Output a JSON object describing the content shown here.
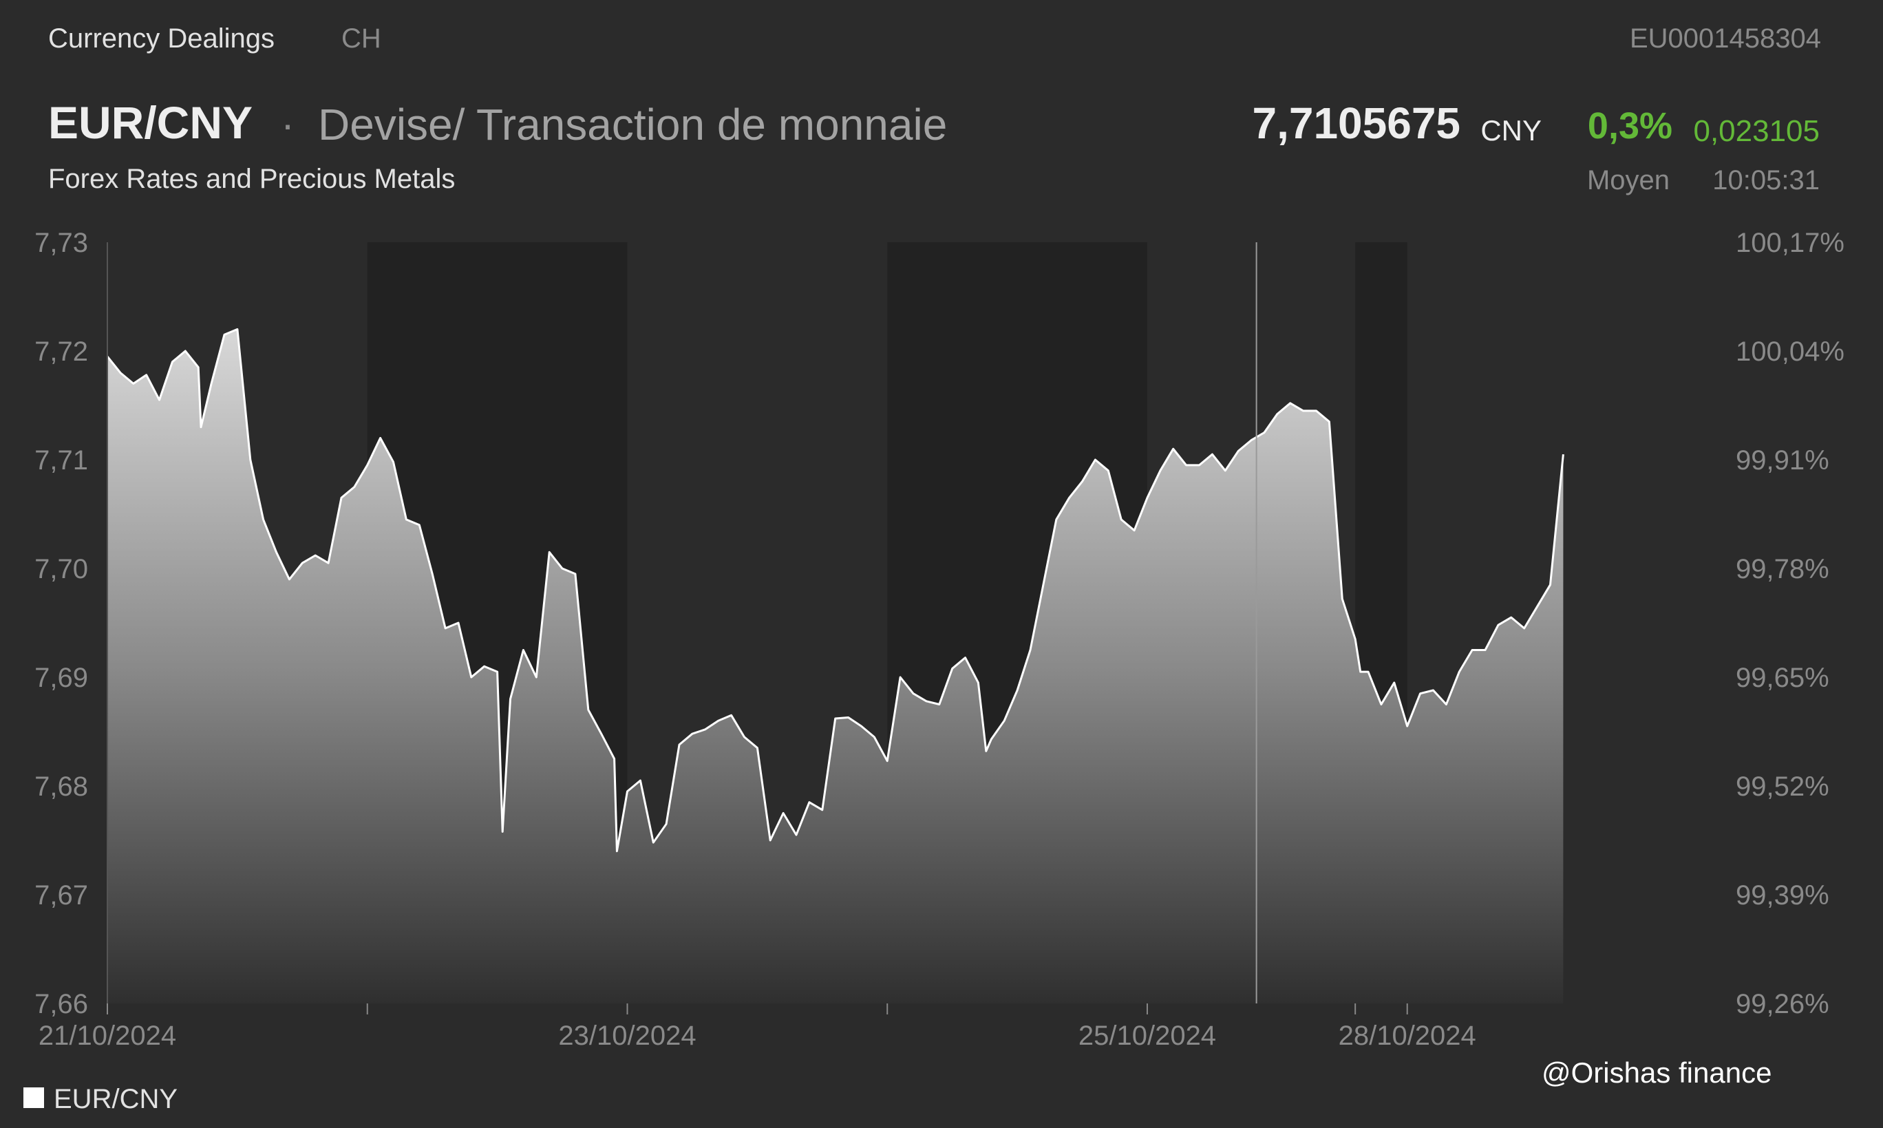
{
  "header": {
    "category": "Currency Dealings",
    "region": "CH",
    "isin": "EU0001458304",
    "pair": "EUR/CNY",
    "separator": "·",
    "description": "Devise/ Transaction de monnaie",
    "subtitle": "Forex Rates and Precious Metals",
    "price": "7,7105675",
    "currency": "CNY",
    "change_pct": "0,3%",
    "change_abs": "0,023105",
    "price_type": "Moyen",
    "time": "10:05:31"
  },
  "colors": {
    "background": "#2b2b2b",
    "night_band": "#222222",
    "line": "#ffffff",
    "positive": "#63b938",
    "axis_text": "#8a8a8a"
  },
  "legend": {
    "label": "EUR/CNY"
  },
  "watermark": "@Orishas finance",
  "chart_data": {
    "type": "area",
    "legend_placement": "bottom-left",
    "y_left_ticks": [
      "7,73",
      "7,72",
      "7,71",
      "7,70",
      "7,69",
      "7,68",
      "7,67",
      "7,66"
    ],
    "y_right_ticks": [
      "100,17%",
      "100,04%",
      "99,91%",
      "99,78%",
      "99,65%",
      "99,52%",
      "99,39%",
      "99,26%"
    ],
    "ylim": [
      7.66,
      7.73
    ],
    "x_range": [
      0,
      6.2
    ],
    "x_tick_labels": [
      {
        "x": 0,
        "label": "21/10/2024"
      },
      {
        "x": 2,
        "label": "23/10/2024"
      },
      {
        "x": 4,
        "label": "25/10/2024"
      },
      {
        "x": 5,
        "label": "28/10/2024"
      }
    ],
    "x_minor_ticks": [
      1,
      3,
      4.8
    ],
    "night_bands": [
      [
        1,
        2
      ],
      [
        3,
        4
      ],
      [
        4.8,
        5
      ]
    ],
    "marker_x": 4.42,
    "series": [
      {
        "name": "EUR/CNY",
        "x": [
          0,
          0.05,
          0.1,
          0.15,
          0.2,
          0.25,
          0.3,
          0.35,
          0.36,
          0.4,
          0.45,
          0.5,
          0.55,
          0.6,
          0.65,
          0.7,
          0.75,
          0.8,
          0.85,
          0.9,
          0.95,
          1,
          1.05,
          1.1,
          1.15,
          1.2,
          1.25,
          1.3,
          1.35,
          1.4,
          1.45,
          1.5,
          1.52,
          1.55,
          1.6,
          1.65,
          1.7,
          1.75,
          1.8,
          1.85,
          1.9,
          1.95,
          1.96,
          2,
          2.05,
          2.1,
          2.15,
          2.2,
          2.25,
          2.3,
          2.35,
          2.4,
          2.45,
          2.5,
          2.55,
          2.6,
          2.65,
          2.7,
          2.75,
          2.8,
          2.85,
          2.9,
          2.95,
          3,
          3.05,
          3.1,
          3.15,
          3.2,
          3.25,
          3.3,
          3.35,
          3.38,
          3.4,
          3.45,
          3.5,
          3.55,
          3.6,
          3.65,
          3.7,
          3.75,
          3.8,
          3.85,
          3.9,
          3.95,
          4,
          4.05,
          4.1,
          4.15,
          4.2,
          4.25,
          4.3,
          4.35,
          4.4,
          4.45,
          4.5,
          4.55,
          4.6,
          4.65,
          4.7,
          4.75,
          4.8,
          4.82,
          4.85,
          4.9,
          4.95,
          5,
          5.05,
          5.1,
          5.15,
          5.2,
          5.25,
          5.3,
          5.35,
          5.4,
          5.45,
          5.5,
          5.55,
          5.6
        ],
        "y": [
          7.7195,
          7.718,
          7.717,
          7.7178,
          7.7155,
          7.719,
          7.72,
          7.7185,
          7.713,
          7.717,
          7.7215,
          7.722,
          7.71,
          7.7045,
          7.7015,
          7.699,
          7.7005,
          7.7012,
          7.7005,
          7.7065,
          7.7075,
          7.7095,
          7.712,
          7.7098,
          7.7045,
          7.704,
          7.6995,
          7.6945,
          7.695,
          7.69,
          7.691,
          7.6905,
          7.6758,
          7.688,
          7.6925,
          7.69,
          7.7015,
          7.7,
          7.6995,
          7.687,
          7.6848,
          7.6825,
          7.674,
          7.6795,
          7.6805,
          7.6748,
          7.6765,
          7.6838,
          7.6848,
          7.6852,
          7.686,
          7.6865,
          7.6845,
          7.6835,
          7.675,
          7.6775,
          7.6755,
          7.6785,
          7.6778,
          7.6862,
          7.6863,
          7.6855,
          7.6845,
          7.6823,
          7.69,
          7.6885,
          7.6878,
          7.6875,
          7.6908,
          7.6918,
          7.6895,
          7.6832,
          7.6843,
          7.686,
          7.6888,
          7.6925,
          7.6985,
          7.7045,
          7.7065,
          7.708,
          7.71,
          7.709,
          7.7045,
          7.7035,
          7.7065,
          7.709,
          7.711,
          7.7095,
          7.7095,
          7.7105,
          7.709,
          7.7108,
          7.7118,
          7.7125,
          7.7142,
          7.7152,
          7.7145,
          7.7145,
          7.7135,
          7.6972,
          7.6935,
          7.6905,
          7.6905,
          7.6875,
          7.6895,
          7.6855,
          7.6885,
          7.6888,
          7.6875,
          7.6905,
          7.6925,
          7.6925,
          7.6948,
          7.6955,
          7.6945,
          7.6965,
          7.6985,
          7.7105
        ]
      }
    ]
  }
}
